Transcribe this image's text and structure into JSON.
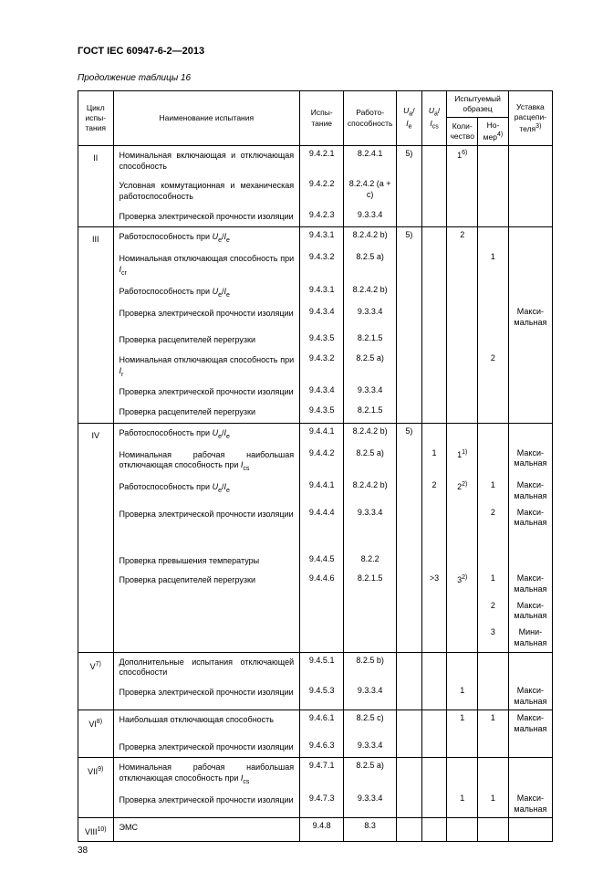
{
  "doc_title": "ГОСТ IEC 60947-6-2—2013",
  "caption": "Продолжение таблицы 16",
  "page_num": "38",
  "col_widths": [
    "32",
    "170",
    "40",
    "48",
    "23",
    "23",
    "28",
    "28",
    "40"
  ],
  "headers": {
    "cycle": "Цикл испы­тания",
    "name": "Наименование испытания",
    "test": "Испы­тание",
    "wcap": "Работо­способ­ность",
    "ua_ie_html": "<span class='it'>U</span><sub>a</sub>/ <span class='it'>I</span><sub>e</sub>",
    "ua_ics_html": "<span class='it'>U</span><sub>a</sub>/ <span class='it'>I</span><sub>cs</sub>",
    "sample": "Испытуемый образец",
    "qty": "Ко­ли­че­ство",
    "num_html": "Но­мер<sup>4)</sup>",
    "set_html": "Уставка рас­цепи­теля<sup>3)</sup>"
  },
  "cycles": [
    {
      "id": "II",
      "rows": [
        {
          "rb": false,
          "name": "Номинальная включающая и отключающая способность",
          "test": "9.4.2.1",
          "wcap": "8.2.4.1",
          "c1": "5)",
          "c2": "",
          "qty": "1<sup>6)</sup>",
          "num": "",
          "set": ""
        },
        {
          "rb": false,
          "name": "Условная коммутационная и механическая ра­ботоспособность",
          "test": "9.4.2.2",
          "wcap": "8.2.4.2 (a + c)",
          "c1": "",
          "c2": "",
          "qty": "",
          "num": "",
          "set": ""
        },
        {
          "rb": true,
          "name": "Проверка электрической прочности изоляции",
          "test": "9.4.2.3",
          "wcap": "9.3.3.4",
          "c1": "",
          "c2": "",
          "qty": "",
          "num": "",
          "set": ""
        }
      ]
    },
    {
      "id": "III",
      "rows": [
        {
          "rb": false,
          "name": "Работоспособность при <span class='it'>U</span><sub>e</sub>/<span class='it'>I</span><sub>e</sub>",
          "test": "9.4.3.1",
          "wcap": "8.2.4.2 b)",
          "c1": "5)",
          "c2": "",
          "qty": "2",
          "num": "",
          "set": ""
        },
        {
          "rb": false,
          "name": "Номинальная отключающая способность при <span class='it'>I</span><sub>cr</sub>",
          "test": "9.4.3.2",
          "wcap": "8.2.5 a)",
          "c1": "",
          "c2": "",
          "qty": "",
          "num": "1",
          "set": ""
        },
        {
          "rb": false,
          "name": "Работоспособность при <span class='it'>U</span><sub>e</sub>/<span class='it'>I</span><sub>e</sub>",
          "test": "9.4.3.1",
          "wcap": "8.2.4.2 b)",
          "c1": "",
          "c2": "",
          "qty": "",
          "num": "",
          "set": ""
        },
        {
          "rb": false,
          "name": "Проверка электрической прочности изоляции",
          "test": "9.4.3.4",
          "wcap": "9.3.3.4",
          "c1": "",
          "c2": "",
          "qty": "",
          "num": "",
          "set": "Макси­мальная"
        },
        {
          "rb": false,
          "name": "Проверка расцепителей перегрузки",
          "test": "9.4.3.5",
          "wcap": "8.2.1.5",
          "c1": "",
          "c2": "",
          "qty": "",
          "num": "",
          "set": ""
        },
        {
          "rb": false,
          "name": "Номинальная отключающая способность при <span class='it'>I</span><sub>r</sub>",
          "test": "9.4.3.2",
          "wcap": "8.2.5 a)",
          "c1": "",
          "c2": "",
          "qty": "",
          "num": "2",
          "set": ""
        },
        {
          "rb": false,
          "name": "Проверка электрической прочности изоляции",
          "test": "9.4.3.4",
          "wcap": "9.3.3.4",
          "c1": "",
          "c2": "",
          "qty": "",
          "num": "",
          "set": ""
        },
        {
          "rb": true,
          "name": "Проверка расцепителей перегрузки",
          "test": "9.4.3.5",
          "wcap": "8.2.1.5",
          "c1": "",
          "c2": "",
          "qty": "",
          "num": "",
          "set": ""
        }
      ]
    },
    {
      "id": "IV",
      "rows": [
        {
          "rb": false,
          "name": "Работоспособность при <span class='it'>U</span><sub>e</sub>/<span class='it'>I</span><sub>e</sub>",
          "test": "9.4.4.1",
          "wcap": "8.2.4.2 b)",
          "c1": "5)",
          "c2": "",
          "qty": "",
          "num": "",
          "set": ""
        },
        {
          "rb": false,
          "name": "Номинальная рабочая наибольшая отключаю­щая способность при <span class='it'>I</span><sub>cs</sub>",
          "test": "9.4.4.2",
          "wcap": "8.2.5 a)",
          "c1": "",
          "c2": "1",
          "qty": "1<sup>1)</sup>",
          "num": "",
          "set": "Макси­мальная"
        },
        {
          "rb": false,
          "name": "Работоспособность при <span class='it'>U</span><sub>e</sub>/<span class='it'>I</span><sub>e</sub>",
          "test": "9.4.4.1",
          "wcap": "8.2.4.2 b)",
          "c1": "",
          "c2": "2",
          "qty": "2<sup>2)</sup>",
          "num": "1",
          "set": "Макси­мальная"
        },
        {
          "rb": false,
          "name": "Проверка электрической прочности изоляции",
          "test": "9.4.4.4",
          "wcap": "9.3.3.4",
          "c1": "",
          "c2": "",
          "qty": "",
          "num": "2",
          "set": "Макси­мальная"
        },
        {
          "rb": false,
          "name": "&nbsp;",
          "test": "",
          "wcap": "",
          "c1": "",
          "c2": "",
          "qty": "",
          "num": "",
          "set": ""
        },
        {
          "rb": false,
          "name": "Проверка превышения температуры",
          "test": "9.4.4.5",
          "wcap": "8.2.2",
          "c1": "",
          "c2": "",
          "qty": "",
          "num": "",
          "set": ""
        },
        {
          "rb": false,
          "name": "Проверка расцепителей перегрузки",
          "test": "9.4.4.6",
          "wcap": "8.2.1.5",
          "c1": "",
          "c2": ">3",
          "qty": "3<sup>2)</sup>",
          "num": "1",
          "set": "Макси­мальная"
        },
        {
          "rb": false,
          "name": "",
          "test": "",
          "wcap": "",
          "c1": "",
          "c2": "",
          "qty": "",
          "num": "2",
          "set": "Макси­мальная"
        },
        {
          "rb": true,
          "name": "",
          "test": "",
          "wcap": "",
          "c1": "",
          "c2": "",
          "qty": "",
          "num": "3",
          "set": "Мини­мальная"
        }
      ]
    },
    {
      "id": "V<sup>7)</sup>",
      "rows": [
        {
          "rb": false,
          "name": "Дополнительные испытания отключающей спо­собности",
          "test": "9.4.5.1",
          "wcap": "8.2.5 b)",
          "c1": "",
          "c2": "",
          "qty": "",
          "num": "",
          "set": ""
        },
        {
          "rb": true,
          "name": "Проверка электрической прочности изоляции",
          "test": "9.4.5.3",
          "wcap": "9.3.3.4",
          "c1": "",
          "c2": "",
          "qty": "1",
          "num": "",
          "set": "Макси­мальная"
        }
      ]
    },
    {
      "id": "VI<sup>8)</sup>",
      "rows": [
        {
          "rb": false,
          "name": "Наибольшая отключающая способность",
          "test": "9.4.6.1",
          "wcap": "8.2.5 c)",
          "c1": "",
          "c2": "",
          "qty": "1",
          "num": "1",
          "set": "Макси­мальная"
        },
        {
          "rb": true,
          "name": "Проверка электрической прочности изоляции",
          "test": "9.4.6.3",
          "wcap": "9.3.3.4",
          "c1": "",
          "c2": "",
          "qty": "",
          "num": "",
          "set": ""
        }
      ]
    },
    {
      "id": "VII<sup>9)</sup>",
      "rows": [
        {
          "rb": false,
          "name": "Номинальная рабочая наибольшая отключаю­щая способность при <span class='it'>I</span><sub>cs</sub>",
          "test": "9.4.7.1",
          "wcap": "8.2.5 a)",
          "c1": "",
          "c2": "",
          "qty": "",
          "num": "",
          "set": ""
        },
        {
          "rb": true,
          "name": "Проверка электрической прочности изоляции",
          "test": "9.4.7.3",
          "wcap": "9.3.3.4",
          "c1": "",
          "c2": "",
          "qty": "1",
          "num": "1",
          "set": "Макси­мальная"
        }
      ]
    },
    {
      "id": "VIII<sup>10)</sup>",
      "rows": [
        {
          "rb": true,
          "name": "ЭМС",
          "test": "9.4.8",
          "wcap": "8.3",
          "c1": "",
          "c2": "",
          "qty": "",
          "num": "",
          "set": ""
        }
      ]
    }
  ]
}
